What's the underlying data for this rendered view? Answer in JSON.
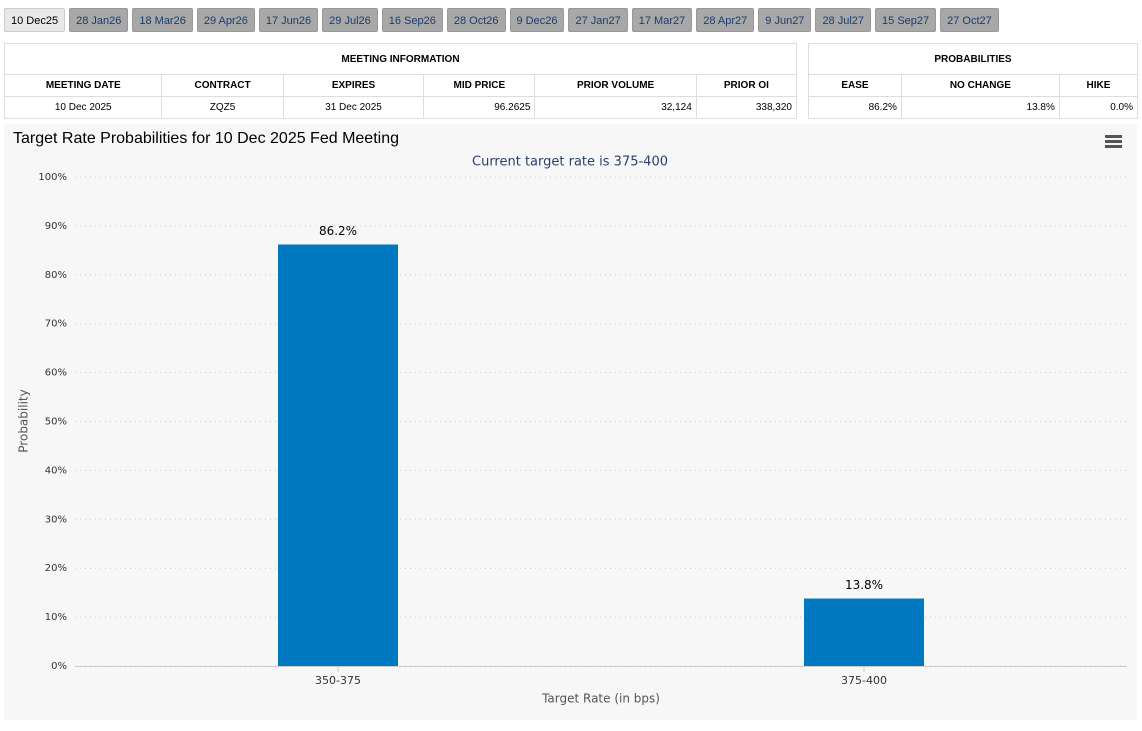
{
  "tabs": [
    "10 Dec25",
    "28 Jan26",
    "18 Mar26",
    "29 Apr26",
    "17 Jun26",
    "29 Jul26",
    "16 Sep26",
    "28 Oct26",
    "9 Dec26",
    "27 Jan27",
    "17 Mar27",
    "28 Apr27",
    "9 Jun27",
    "28 Jul27",
    "15 Sep27",
    "27 Oct27"
  ],
  "meeting_info": {
    "title": "MEETING INFORMATION",
    "headers": [
      "MEETING DATE",
      "CONTRACT",
      "EXPIRES",
      "MID PRICE",
      "PRIOR VOLUME",
      "PRIOR OI"
    ],
    "rows": [
      [
        "10 Dec 2025",
        "ZQZ5",
        "31 Dec 2025",
        "96.2625",
        "32,124",
        "338,320"
      ]
    ]
  },
  "probabilities": {
    "title": "PROBABILITIES",
    "headers": [
      "EASE",
      "NO CHANGE",
      "HIKE"
    ],
    "rows": [
      [
        "86.2%",
        "13.8%",
        "0.0%"
      ]
    ]
  },
  "chart_data": {
    "type": "bar",
    "title": "Target Rate Probabilities for 10 Dec 2025 Fed Meeting",
    "subtitle": "Current target rate is 375-400",
    "x_label": "Target Rate (in bps)",
    "y_label": "Probability",
    "categories": [
      "350-375",
      "375-400"
    ],
    "values": [
      86.2,
      13.8
    ],
    "value_labels": [
      "86.2%",
      "13.8%"
    ],
    "color": "#0079c0",
    "ylim": [
      0,
      100
    ],
    "yticks": [
      {
        "value": 0,
        "label": "0%"
      },
      {
        "value": 10,
        "label": "10%"
      },
      {
        "value": 20,
        "label": "20%"
      },
      {
        "value": 30,
        "label": "30%"
      },
      {
        "value": 40,
        "label": "40%"
      },
      {
        "value": 50,
        "label": "50%"
      },
      {
        "value": 60,
        "label": "60%"
      },
      {
        "value": 70,
        "label": "70%"
      },
      {
        "value": 80,
        "label": "80%"
      },
      {
        "value": 90,
        "label": "90%"
      },
      {
        "value": 100,
        "label": "100%"
      }
    ],
    "grid": true
  }
}
